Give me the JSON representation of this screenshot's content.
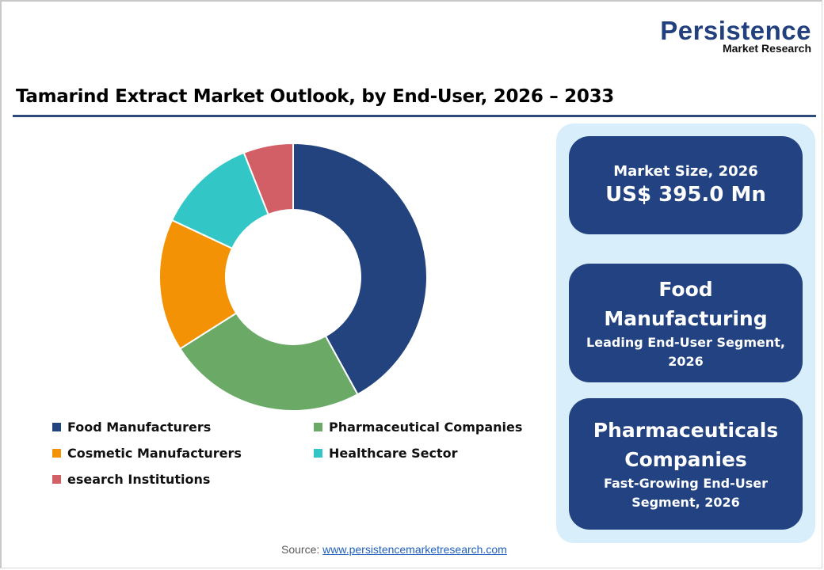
{
  "logo": {
    "name": "Persistence",
    "tagline": "Market Research"
  },
  "title": "Tamarind Extract Market Outlook, by End-User, 2026 – 2033",
  "chart_data": {
    "type": "pie",
    "subtype": "donut",
    "title": "Tamarind Extract Market Outlook, by End-User, 2026 – 2033",
    "categories": [
      "Food Manufacturers",
      "Pharmaceutical Companies",
      "Cosmetic Manufacturers",
      "Healthcare Sector",
      "esearch Institutions"
    ],
    "values": [
      42,
      24,
      16,
      12,
      6
    ],
    "unit": "% share (estimated from slice angles)",
    "colors": [
      "#23437f",
      "#6aaa66",
      "#f49206",
      "#33c6c6",
      "#d35f66"
    ],
    "legend_position": "bottom"
  },
  "legend": {
    "items": [
      {
        "label": "Food Manufacturers",
        "color": "#23437f"
      },
      {
        "label": "Pharmaceutical Companies",
        "color": "#6aaa66"
      },
      {
        "label": "Cosmetic Manufacturers",
        "color": "#f49206"
      },
      {
        "label": "Healthcare Sector",
        "color": "#33c6c6"
      },
      {
        "label": "esearch Institutions",
        "color": "#d35f66"
      }
    ]
  },
  "cards": {
    "market_size": {
      "label": "Market Size, 2026",
      "value": "US$ 395.0 Mn"
    },
    "leading": {
      "line1": "Food",
      "line2": "Manufacturing",
      "sub": "Leading End-User  Segment, 2026"
    },
    "fast_growing": {
      "line1": "Pharmaceuticals",
      "line2": "Companies",
      "sub": "Fast-Growing End-User Segment, 2026"
    }
  },
  "source": {
    "label": "Source: ",
    "link": "www.persistencemarketresearch.com"
  },
  "colors": {
    "brand_blue": "#224282",
    "panel_bg": "#d9eefb",
    "title_rule": "#2e4a7d"
  }
}
